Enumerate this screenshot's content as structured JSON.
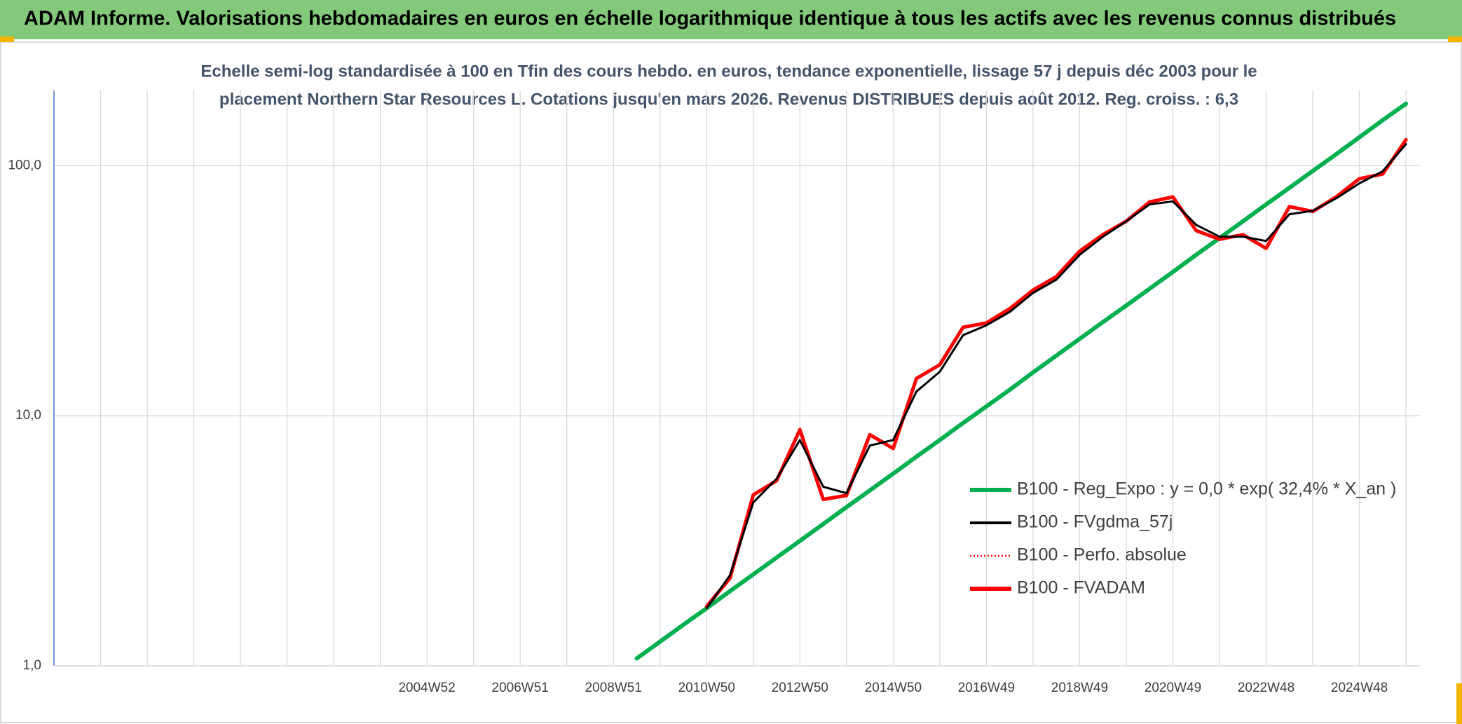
{
  "chart_data": {
    "type": "line",
    "title": "ADAM Informe. Valorisations hebdomadaires en euros en échelle logarithmique identique à tous les actifs avec les revenus connus distribués",
    "subtitle": [
      "Echelle semi-log standardisée à 100 en Tfin des cours hebdo. en euros, tendance exponentielle, lissage 57 j depuis déc 2003 pour le",
      "placement Northern Star Resources L. Cotations jusqu'en mars 2026. Revenus DISTRIBUES depuis août 2012. Reg. croiss. : 6,3"
    ],
    "categories": [
      null,
      null,
      null,
      null,
      null,
      null,
      null,
      null,
      null,
      null,
      null,
      null,
      null,
      null,
      null,
      null,
      "2004W52",
      null,
      null,
      null,
      "2006W51",
      null,
      null,
      null,
      "2008W51",
      null,
      null,
      null,
      "2010W50",
      null,
      null,
      null,
      "2012W50",
      null,
      null,
      null,
      "2014W50",
      null,
      null,
      null,
      "2016W49",
      null,
      null,
      null,
      "2018W49",
      null,
      null,
      null,
      "2020W49",
      null,
      null,
      null,
      "2022W48",
      null,
      null,
      null,
      "2024W48",
      null,
      null
    ],
    "log_scale": true,
    "grid": true,
    "legend": "right",
    "ylim": [
      1,
      200
    ],
    "yticks": [
      {
        "value": 1,
        "label": "1,0"
      },
      {
        "value": 10,
        "label": "10,0"
      },
      {
        "value": 100,
        "label": "100,0"
      }
    ],
    "series": [
      {
        "name": "B100 - Reg_Expo : y = 0,0 * exp( 32,4% *  X_an )",
        "color": "#00b050",
        "dash": "solid",
        "values": [
          null,
          null,
          null,
          null,
          null,
          null,
          null,
          null,
          null,
          null,
          null,
          null,
          null,
          null,
          null,
          null,
          null,
          null,
          null,
          null,
          null,
          null,
          null,
          null,
          null,
          1.07,
          1.25,
          1.46,
          1.7,
          1.99,
          2.32,
          2.71,
          3.16,
          3.69,
          4.31,
          5.03,
          5.87,
          6.86,
          8.0,
          9.35,
          10.9,
          12.7,
          14.9,
          17.4,
          20.3,
          23.7,
          27.6,
          32.2,
          37.6,
          44.0,
          51.3,
          59.9,
          70.0,
          81.6,
          95.3,
          111,
          130,
          152,
          177
        ]
      },
      {
        "name": "B100 - FVgdma_57j",
        "color": "#000000",
        "dash": "solid",
        "values": [
          null,
          null,
          null,
          null,
          null,
          null,
          null,
          null,
          null,
          null,
          null,
          null,
          null,
          null,
          null,
          null,
          null,
          null,
          null,
          null,
          null,
          null,
          null,
          null,
          null,
          null,
          null,
          null,
          1.7,
          2.3,
          4.5,
          5.6,
          8.0,
          5.2,
          4.9,
          7.6,
          8.0,
          12.5,
          15,
          21,
          23,
          26,
          31,
          35,
          44,
          52,
          60,
          70,
          72,
          58,
          52,
          52,
          50,
          64,
          66,
          74,
          85,
          95,
          122
        ]
      },
      {
        "name": "B100 - Perfo. absolue",
        "color": "#ff0000",
        "dash": "dotted",
        "values": [
          null,
          null,
          null,
          null,
          null,
          null,
          null,
          null,
          null,
          null,
          null,
          null,
          null,
          null,
          null,
          null,
          null,
          null,
          null,
          null,
          null,
          null,
          null,
          null,
          null,
          null,
          null,
          null,
          1.73,
          2.24,
          4.83,
          5.5,
          8.8,
          4.63,
          4.8,
          8.4,
          7.4,
          14.1,
          16,
          22.6,
          23.5,
          26.8,
          31.8,
          36,
          45.5,
          53,
          60,
          71.6,
          75,
          55,
          50.8,
          53,
          46.7,
          68.6,
          65.6,
          75,
          88.7,
          92.6,
          127
        ]
      },
      {
        "name": "B100 - FVADAM",
        "color": "#ff0000",
        "dash": "solid",
        "values": [
          null,
          null,
          null,
          null,
          null,
          null,
          null,
          null,
          null,
          null,
          null,
          null,
          null,
          null,
          null,
          null,
          null,
          null,
          null,
          null,
          null,
          null,
          null,
          null,
          null,
          null,
          null,
          null,
          1.73,
          2.24,
          4.83,
          5.5,
          8.8,
          4.63,
          4.8,
          8.4,
          7.4,
          14.1,
          16,
          22.6,
          23.5,
          26.8,
          31.8,
          36,
          45.5,
          53,
          60,
          71.6,
          75,
          55,
          50.8,
          53,
          46.7,
          68.6,
          65.6,
          75,
          88.7,
          92.6,
          127
        ]
      }
    ]
  }
}
